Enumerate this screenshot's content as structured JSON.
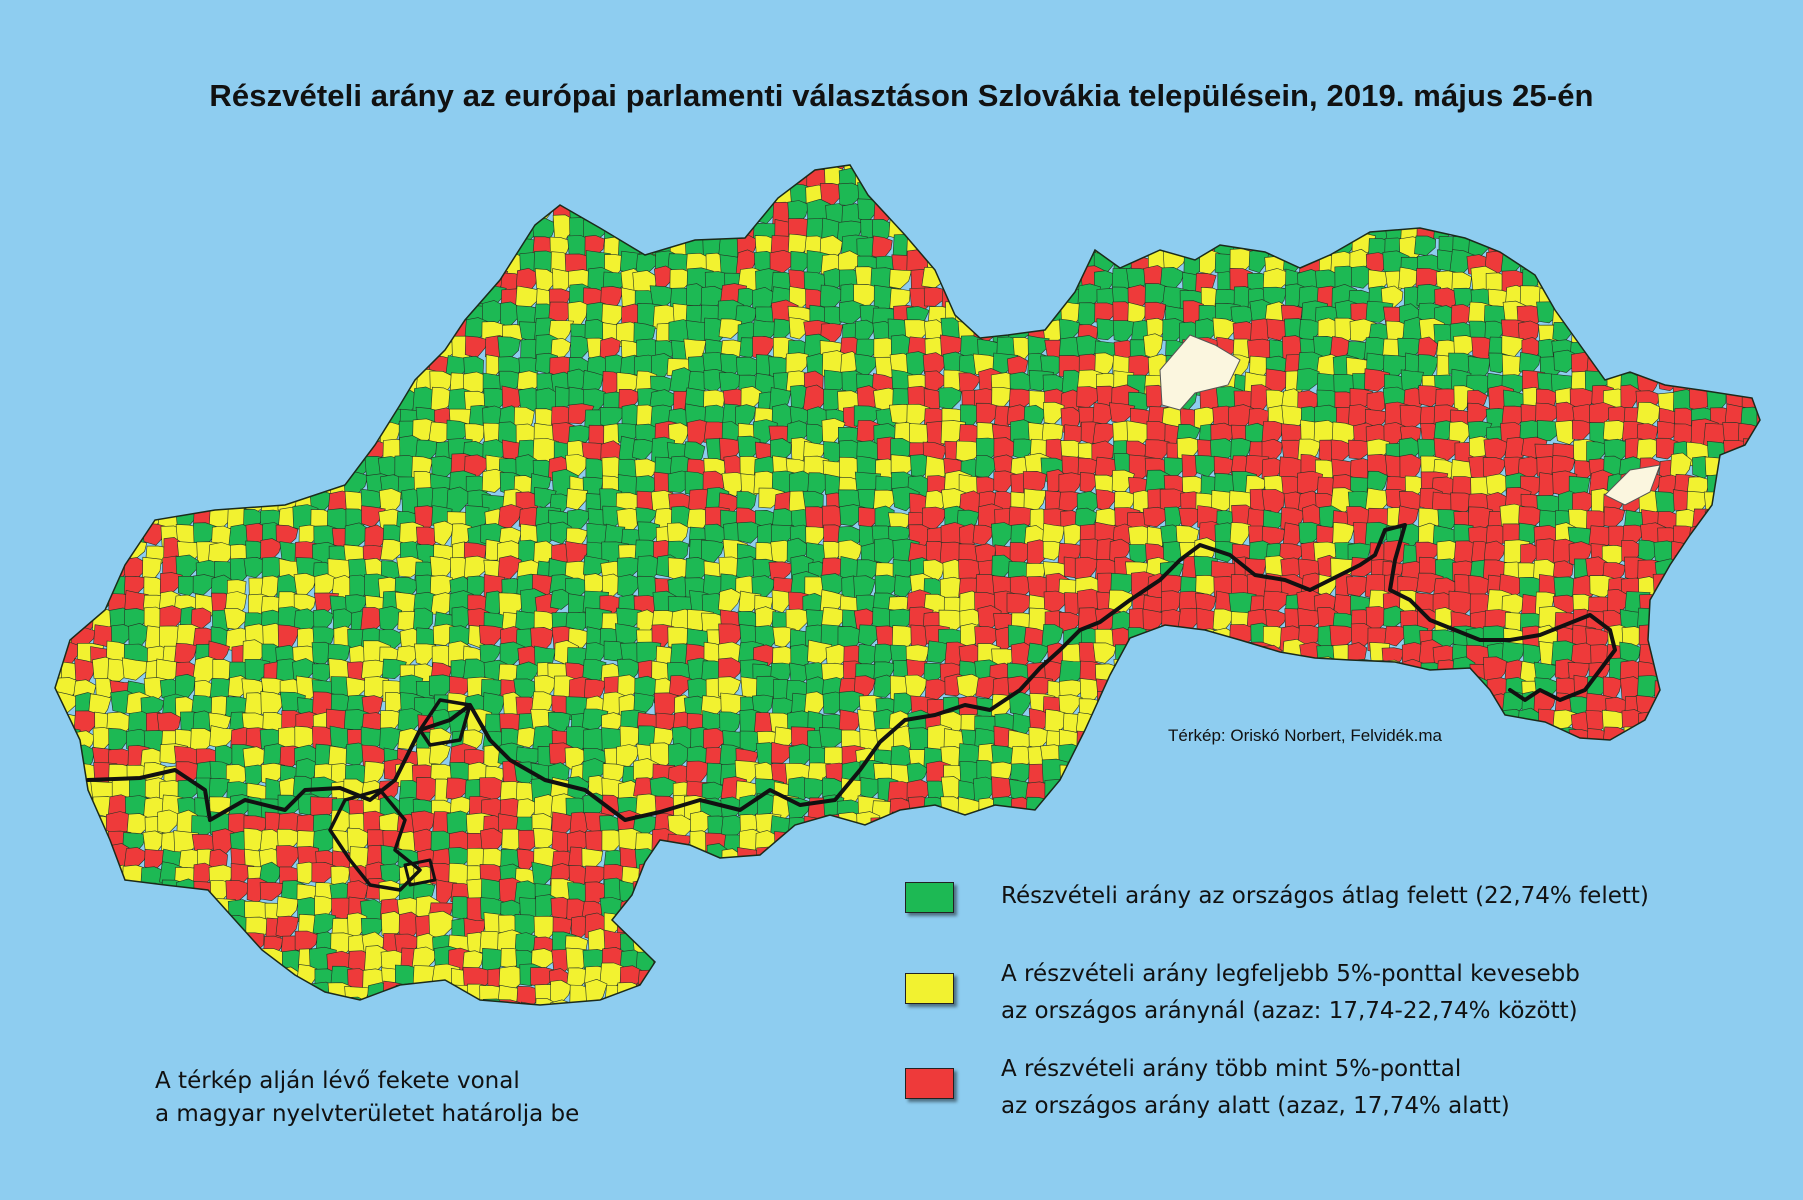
{
  "title": "Részvételi arány az európai parlamenti választáson Szlovákia településein, 2019. május 25-én",
  "credit": "Térkép: Oriskó Norbert, Felvidék.ma",
  "note": {
    "line1": "A térkép alján lévő fekete vonal",
    "line2": "a magyar nyelvterületet határolja be"
  },
  "legend": {
    "items": [
      {
        "color": "#1db954",
        "line1": "Részvételi arány az országos átlag felett (22,74% felett)",
        "line2": ""
      },
      {
        "color": "#f2f230",
        "line1": "A részvételi arány legfeljebb 5%-ponttal kevesebb",
        "line2": "az országos aránynál (azaz: 17,74-22,74% között)"
      },
      {
        "color": "#ee3a3a",
        "line1": "A részvételi arány több mint 5%-ponttal",
        "line2": "az országos arány alatt (azaz, 17,74% alatt)"
      }
    ]
  },
  "colors": {
    "background": "#8ecdf0",
    "above_average": "#1db954",
    "within_5pp": "#f2f230",
    "below_5pp": "#ee3a3a",
    "no_data": "#fbf6df",
    "boundary": "#111111"
  }
}
